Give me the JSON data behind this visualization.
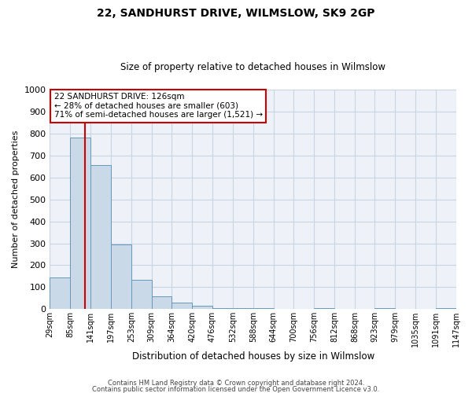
{
  "title": "22, SANDHURST DRIVE, WILMSLOW, SK9 2GP",
  "subtitle": "Size of property relative to detached houses in Wilmslow",
  "xlabel": "Distribution of detached houses by size in Wilmslow",
  "ylabel": "Number of detached properties",
  "bin_edges": [
    29,
    85,
    141,
    197,
    253,
    309,
    364,
    420,
    476,
    532,
    588,
    644,
    700,
    756,
    812,
    868,
    923,
    979,
    1035,
    1091,
    1147
  ],
  "bar_heights": [
    143,
    783,
    658,
    293,
    135,
    57,
    30,
    15,
    5,
    5,
    5,
    0,
    0,
    5,
    0,
    0,
    5,
    0,
    0,
    5
  ],
  "bar_color": "#c9d9e8",
  "bar_edge_color": "#6699bb",
  "tick_labels": [
    "29sqm",
    "85sqm",
    "141sqm",
    "197sqm",
    "253sqm",
    "309sqm",
    "364sqm",
    "420sqm",
    "476sqm",
    "532sqm",
    "588sqm",
    "644sqm",
    "700sqm",
    "756sqm",
    "812sqm",
    "868sqm",
    "923sqm",
    "979sqm",
    "1035sqm",
    "1091sqm",
    "1147sqm"
  ],
  "property_line_x": 126,
  "property_line_color": "#cc0000",
  "ylim": [
    0,
    1000
  ],
  "yticks": [
    0,
    100,
    200,
    300,
    400,
    500,
    600,
    700,
    800,
    900,
    1000
  ],
  "annotation_line1": "22 SANDHURST DRIVE: 126sqm",
  "annotation_line2": "← 28% of detached houses are smaller (603)",
  "annotation_line3": "71% of semi-detached houses are larger (1,521) →",
  "annotation_box_color": "#ffffff",
  "annotation_box_edge": "#cc0000",
  "footer_line1": "Contains HM Land Registry data © Crown copyright and database right 2024.",
  "footer_line2": "Contains public sector information licensed under the Open Government Licence v3.0.",
  "background_color": "#ffffff",
  "plot_bg_color": "#eef2f8",
  "grid_color": "#c8d4e4"
}
